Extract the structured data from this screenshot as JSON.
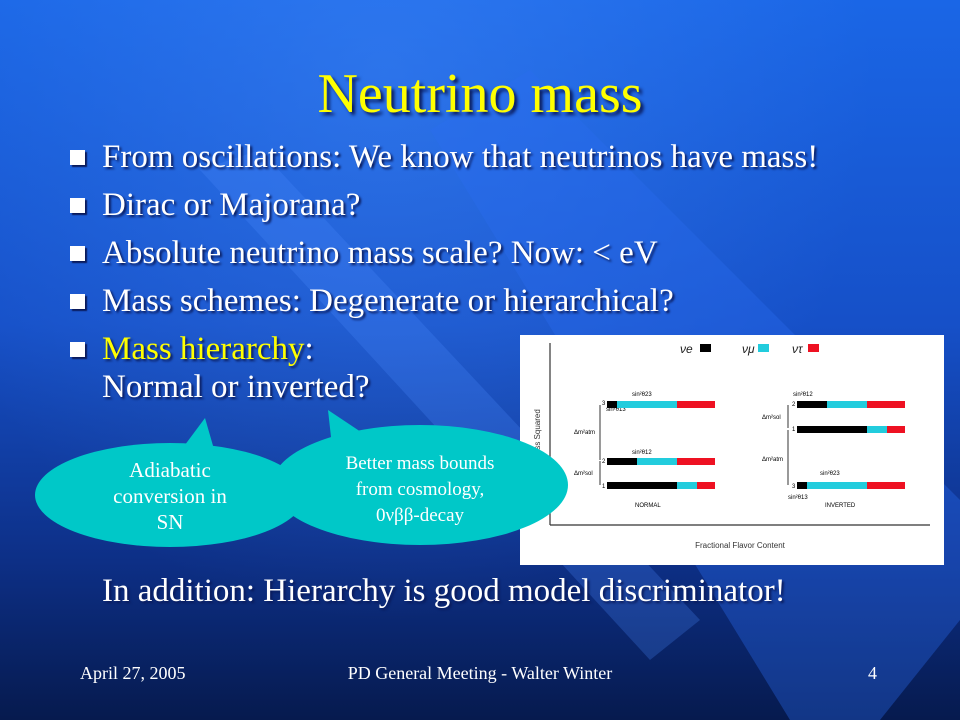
{
  "slide": {
    "title": "Neutrino mass",
    "bullets": [
      "From oscillations: We know that neutrinos have mass!",
      "Dirac or Majorana?",
      "Absolute neutrino mass scale? Now: < eV",
      "Mass schemes: Degenerate or hierarchical?"
    ],
    "hierarchy": {
      "highlight": "Mass hierarchy",
      "rest": ":",
      "line2": "Normal or inverted?"
    },
    "bubble_left": [
      "Adiabatic",
      "conversion in",
      "SN"
    ],
    "bubble_right": [
      "Better mass bounds",
      "from cosmology,",
      "0νββ-decay"
    ],
    "addition": "In addition: Hierarchy is good model discriminator!"
  },
  "figure": {
    "ylabel": "Mass Squared",
    "xlabel": "Fractional Flavor Content",
    "legend": [
      "νe",
      "νμ",
      "ντ"
    ],
    "normal_label": "NORMAL",
    "inverted_label": "INVERTED",
    "angle_labels": {
      "n3_a": "sin²θ23",
      "n3_b": "sin²θ13",
      "n2": "sin²θ12",
      "i2": "sin²θ12",
      "i3": "sin²θ23",
      "i3_b": "sin²θ13"
    },
    "split_labels": {
      "n_atm": "Δm²atm",
      "n_sol": "Δm²sol",
      "i_sol": "Δm²sol",
      "i_atm": "Δm²atm"
    },
    "state_labels": {
      "n3": "3",
      "n2": "2",
      "n1": "1",
      "i2": "2",
      "i1": "1",
      "i3": "3"
    },
    "colors": {
      "nue": "#000000",
      "numu": "#22ccdd",
      "nutau": "#ee1122"
    }
  },
  "footer": {
    "date": "April 27, 2005",
    "center": "PD General Meeting - Walter Winter",
    "page": "4"
  },
  "colors": {
    "title": "#ffff00",
    "bubble": "#00c8c8",
    "text": "#ffffff"
  }
}
